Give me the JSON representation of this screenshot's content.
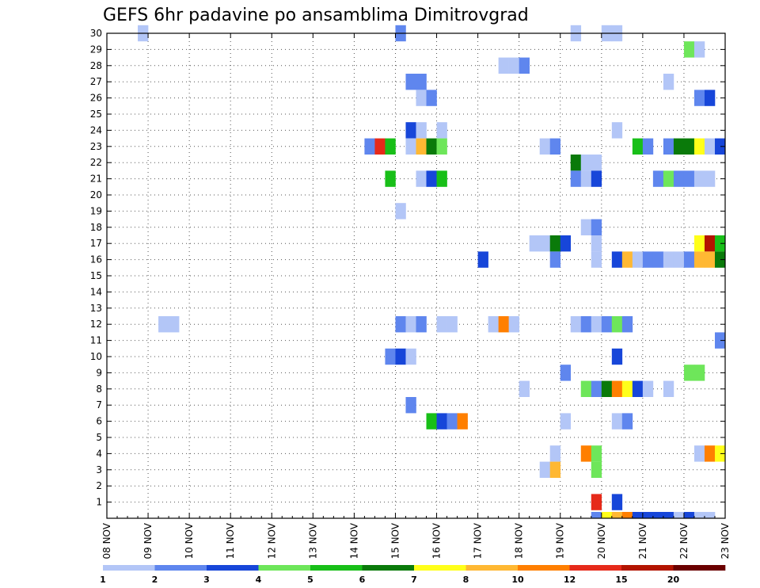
{
  "chart_data": {
    "type": "heatmap",
    "title": "GEFS 6hr padavine po ansamblima Dimitrovgrad",
    "x_ticks": [
      "08 NOV",
      "09 NOV",
      "10 NOV",
      "11 NOV",
      "12 NOV",
      "13 NOV",
      "14 NOV",
      "15 NOV",
      "16 NOV",
      "17 NOV",
      "18 NOV",
      "19 NOV",
      "20 NOV",
      "21 NOV",
      "22 NOV",
      "23 NOV"
    ],
    "x_range_days": [
      8,
      23
    ],
    "steps_per_day": 4,
    "y_ticks": [
      "1",
      "2",
      "3",
      "4",
      "5",
      "6",
      "7",
      "8",
      "9",
      "10",
      "11",
      "12",
      "13",
      "14",
      "15",
      "16",
      "17",
      "18",
      "19",
      "20",
      "21",
      "22",
      "23",
      "24",
      "25",
      "26",
      "27",
      "28",
      "29",
      "30"
    ],
    "y_range": [
      0,
      30
    ],
    "grid": "dotted",
    "legend": {
      "position": "bottom",
      "labels": [
        "1",
        "2",
        "3",
        "4",
        "5",
        "6",
        "7",
        "8",
        "10",
        "12",
        "15",
        "20"
      ],
      "colors": [
        "#b3c6f7",
        "#5f86ee",
        "#1746d9",
        "#6ee65a",
        "#18bf18",
        "#0a7a0a",
        "#ffff1a",
        "#ffb833",
        "#ff7f00",
        "#e62a1a",
        "#b31400",
        "#6b0000"
      ]
    },
    "cells": [
      {
        "member": 30,
        "step": [
          [
            3,
            0
          ],
          [
            28,
            1
          ],
          [
            45,
            0
          ],
          [
            48,
            0
          ],
          [
            49,
            0
          ]
        ]
      },
      {
        "member": 29,
        "step": [
          [
            56,
            3
          ],
          [
            57,
            0
          ]
        ]
      },
      {
        "member": 28,
        "step": [
          [
            38,
            0
          ],
          [
            39,
            0
          ],
          [
            40,
            1
          ]
        ]
      },
      {
        "member": 27,
        "step": [
          [
            29,
            1
          ],
          [
            30,
            1
          ],
          [
            54,
            0
          ]
        ]
      },
      {
        "member": 26,
        "step": [
          [
            30,
            0
          ],
          [
            31,
            1
          ],
          [
            57,
            1
          ],
          [
            58,
            2
          ]
        ]
      },
      {
        "member": 24,
        "step": [
          [
            29,
            2
          ],
          [
            30,
            0
          ],
          [
            32,
            0
          ],
          [
            49,
            0
          ]
        ]
      },
      {
        "member": 23,
        "step": [
          [
            25,
            1
          ],
          [
            26,
            9
          ],
          [
            27,
            4
          ],
          [
            29,
            0
          ],
          [
            30,
            7
          ],
          [
            31,
            5
          ],
          [
            32,
            3
          ],
          [
            42,
            0
          ],
          [
            43,
            1
          ],
          [
            51,
            4
          ],
          [
            52,
            1
          ],
          [
            54,
            1
          ],
          [
            55,
            5
          ],
          [
            56,
            5
          ],
          [
            57,
            6
          ],
          [
            58,
            0
          ],
          [
            59,
            2
          ]
        ]
      },
      {
        "member": 22,
        "step": [
          [
            45,
            5
          ],
          [
            46,
            0
          ],
          [
            47,
            0
          ]
        ]
      },
      {
        "member": 21,
        "step": [
          [
            27,
            4
          ],
          [
            30,
            0
          ],
          [
            31,
            2
          ],
          [
            32,
            4
          ],
          [
            45,
            1
          ],
          [
            46,
            0
          ],
          [
            47,
            2
          ],
          [
            53,
            1
          ],
          [
            54,
            3
          ],
          [
            55,
            1
          ],
          [
            56,
            1
          ],
          [
            57,
            0
          ],
          [
            58,
            0
          ]
        ]
      },
      {
        "member": 19,
        "step": [
          [
            28,
            0
          ]
        ]
      },
      {
        "member": 18,
        "step": [
          [
            46,
            0
          ],
          [
            47,
            1
          ]
        ]
      },
      {
        "member": 17,
        "step": [
          [
            41,
            0
          ],
          [
            42,
            0
          ],
          [
            43,
            5
          ],
          [
            44,
            2
          ],
          [
            47,
            0
          ],
          [
            57,
            6
          ],
          [
            58,
            10
          ],
          [
            59,
            4
          ]
        ]
      },
      {
        "member": 16,
        "step": [
          [
            36,
            2
          ],
          [
            43,
            1
          ],
          [
            47,
            0
          ],
          [
            49,
            2
          ],
          [
            50,
            7
          ],
          [
            51,
            0
          ],
          [
            52,
            1
          ],
          [
            53,
            1
          ],
          [
            54,
            0
          ],
          [
            55,
            0
          ],
          [
            56,
            1
          ],
          [
            57,
            7
          ],
          [
            58,
            7
          ],
          [
            59,
            5
          ]
        ]
      },
      {
        "member": 12,
        "step": [
          [
            5,
            0
          ],
          [
            6,
            0
          ],
          [
            28,
            1
          ],
          [
            29,
            0
          ],
          [
            30,
            1
          ],
          [
            32,
            0
          ],
          [
            33,
            0
          ],
          [
            37,
            0
          ],
          [
            38,
            8
          ],
          [
            39,
            0
          ],
          [
            45,
            0
          ],
          [
            46,
            1
          ],
          [
            47,
            0
          ],
          [
            48,
            1
          ],
          [
            49,
            3
          ],
          [
            50,
            1
          ]
        ]
      },
      {
        "member": 11,
        "step": [
          [
            59,
            1
          ]
        ]
      },
      {
        "member": 10,
        "step": [
          [
            27,
            1
          ],
          [
            28,
            2
          ],
          [
            29,
            0
          ],
          [
            49,
            2
          ]
        ]
      },
      {
        "member": 9,
        "step": [
          [
            44,
            1
          ],
          [
            56,
            3
          ],
          [
            57,
            3
          ]
        ]
      },
      {
        "member": 8,
        "step": [
          [
            40,
            0
          ],
          [
            46,
            3
          ],
          [
            47,
            1
          ],
          [
            48,
            5
          ],
          [
            49,
            8
          ],
          [
            50,
            6
          ],
          [
            51,
            2
          ],
          [
            52,
            0
          ],
          [
            54,
            0
          ]
        ]
      },
      {
        "member": 7,
        "step": [
          [
            29,
            1
          ]
        ]
      },
      {
        "member": 6,
        "step": [
          [
            31,
            4
          ],
          [
            32,
            2
          ],
          [
            33,
            1
          ],
          [
            34,
            8
          ],
          [
            44,
            0
          ],
          [
            49,
            0
          ],
          [
            50,
            1
          ]
        ]
      },
      {
        "member": 4,
        "step": [
          [
            43,
            0
          ],
          [
            46,
            8
          ],
          [
            47,
            3
          ],
          [
            57,
            0
          ],
          [
            58,
            8
          ],
          [
            59,
            6
          ]
        ]
      },
      {
        "member": 3,
        "step": [
          [
            42,
            0
          ],
          [
            43,
            7
          ],
          [
            47,
            3
          ]
        ]
      },
      {
        "member": 1,
        "step": [
          [
            47,
            9
          ],
          [
            49,
            2
          ]
        ]
      },
      {
        "member": 0,
        "step": [
          [
            47,
            1
          ],
          [
            48,
            6
          ],
          [
            49,
            7
          ],
          [
            50,
            8
          ],
          [
            51,
            2
          ],
          [
            52,
            2
          ],
          [
            53,
            2
          ],
          [
            54,
            2
          ],
          [
            55,
            0
          ],
          [
            56,
            2
          ],
          [
            57,
            0
          ],
          [
            58,
            0
          ]
        ]
      }
    ]
  }
}
